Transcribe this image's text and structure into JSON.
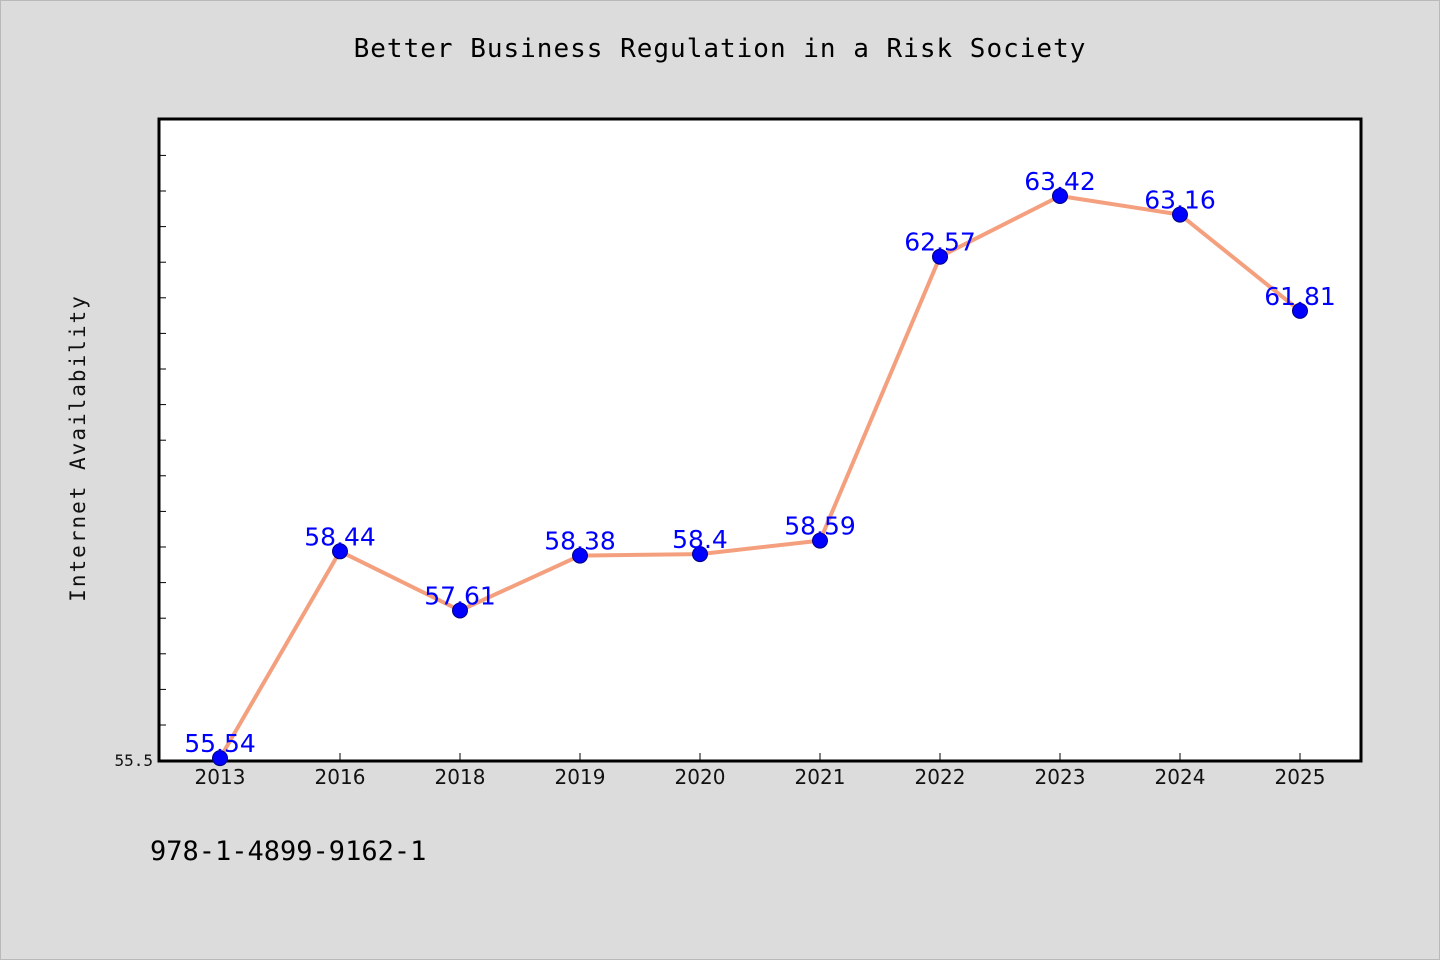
{
  "chart_data": {
    "type": "line",
    "title": "Better Business Regulation in a Risk Society",
    "ylabel": "Internet Availability",
    "xlabel": "",
    "categories": [
      "2013",
      "2016",
      "2018",
      "2019",
      "2020",
      "2021",
      "2022",
      "2023",
      "2024",
      "2025"
    ],
    "values": [
      55.54,
      58.44,
      57.61,
      58.38,
      58.4,
      58.59,
      62.57,
      63.42,
      63.16,
      61.81
    ],
    "data_labels": [
      "55.54",
      "58.44",
      "57.61",
      "58.38",
      "58.4",
      "58.59",
      "62.57",
      "63.42",
      "63.16",
      "61.81"
    ],
    "ylim": [
      55.5,
      64.5
    ],
    "y_tick_labels": [
      "55.5"
    ],
    "grid": false,
    "legend": "none",
    "colors": {
      "line": "#f4a07f",
      "marker": "#0000ff",
      "marker_edge": "#000080",
      "data_label": "#0000ff",
      "plot_background": "#ffffff",
      "figure_background": "#dcdcdc"
    }
  },
  "footer": {
    "isbn": "978-1-4899-9162-1"
  }
}
